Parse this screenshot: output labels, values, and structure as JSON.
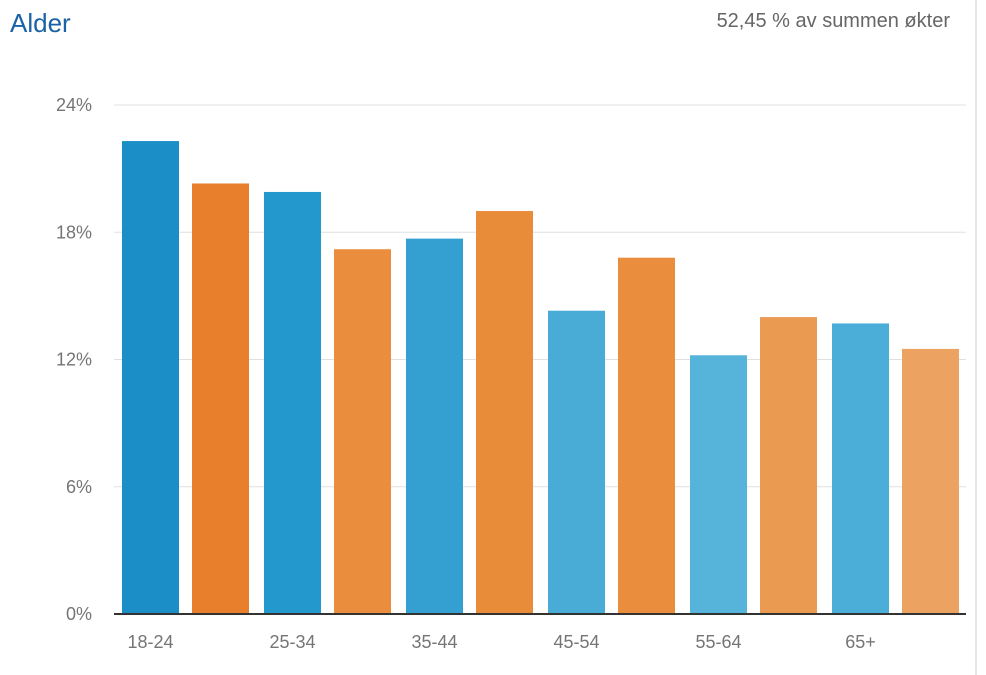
{
  "header": {
    "title": "Alder",
    "summary": "52,45 % av summen økter"
  },
  "colors": {
    "series_a": [
      "#1c8ec7",
      "#2398cd",
      "#33a0d1",
      "#48acd7",
      "#56b4db",
      "#4aaed8"
    ],
    "series_b": [
      "#e77f2c",
      "#ea8d3c",
      "#e98c3a",
      "#ea8e3e",
      "#eb9a52",
      "#eca260"
    ],
    "grid": "#e0e0e0",
    "axis": "#333333",
    "tick_text": "#757575"
  },
  "chart_data": {
    "type": "bar",
    "categories": [
      "18-24",
      "25-34",
      "35-44",
      "45-54",
      "55-64",
      "65+"
    ],
    "series": [
      {
        "values": [
          22.3,
          19.9,
          17.7,
          14.3,
          12.2,
          13.7
        ]
      },
      {
        "values": [
          20.3,
          17.2,
          19.0,
          16.8,
          14.0,
          12.5
        ]
      }
    ],
    "ylim": [
      0,
      24
    ],
    "yticks": [
      "0%",
      "6%",
      "12%",
      "18%",
      "24%"
    ],
    "grid": true,
    "legend": "none"
  }
}
